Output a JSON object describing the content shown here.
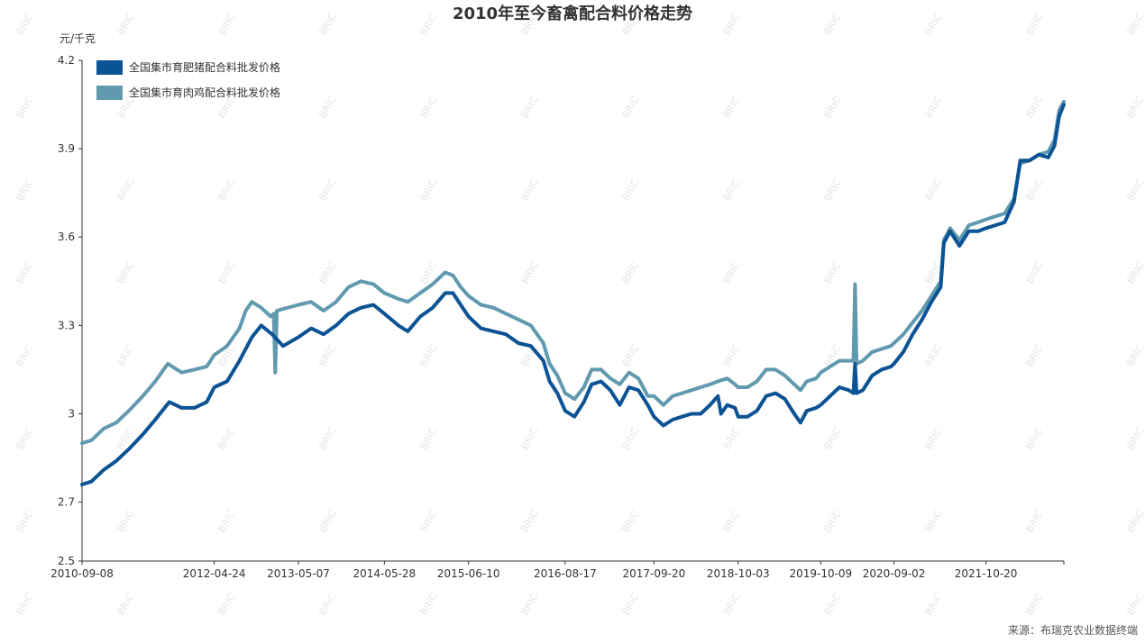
{
  "source_label": "来源：布瑞克农业数据终端",
  "watermark_text": "BRIC",
  "chart_data": {
    "type": "line",
    "title": "2010年至今畜禽配合料价格走势",
    "ylabel": "元/千克",
    "xlabel": "",
    "ylim": [
      2.5,
      4.2
    ],
    "y_ticks": [
      2.5,
      2.7,
      3,
      3.3,
      3.6,
      3.9,
      4.2
    ],
    "x_ticks": [
      "2010-09-08",
      "2012-04-24",
      "2013-05-07",
      "2014-05-28",
      "2015-06-10",
      "2016-08-17",
      "2017-09-20",
      "2018-10-03",
      "2019-10-09",
      "2020-09-02",
      "2021-10-20"
    ],
    "x_range": [
      "2010-09-08",
      "2022-10-05"
    ],
    "grid": false,
    "legend_position": "top-left",
    "series": [
      {
        "name": "全国集市育肥猪配合料批发价格",
        "color": "#0b5394",
        "points": [
          [
            "2010-09-08",
            2.76
          ],
          [
            "2010-10-20",
            2.77
          ],
          [
            "2010-12-15",
            2.81
          ],
          [
            "2011-02-09",
            2.84
          ],
          [
            "2011-04-06",
            2.88
          ],
          [
            "2011-06-08",
            2.93
          ],
          [
            "2011-08-03",
            2.98
          ],
          [
            "2011-10-05",
            3.04
          ],
          [
            "2011-11-30",
            3.02
          ],
          [
            "2012-01-25",
            3.02
          ],
          [
            "2012-03-21",
            3.04
          ],
          [
            "2012-04-24",
            3.09
          ],
          [
            "2012-06-20",
            3.11
          ],
          [
            "2012-08-15",
            3.18
          ],
          [
            "2012-10-10",
            3.26
          ],
          [
            "2012-11-21",
            3.3
          ],
          [
            "2013-01-09",
            3.27
          ],
          [
            "2013-02-27",
            3.23
          ],
          [
            "2013-05-07",
            3.26
          ],
          [
            "2013-07-03",
            3.29
          ],
          [
            "2013-08-28",
            3.27
          ],
          [
            "2013-10-23",
            3.3
          ],
          [
            "2013-12-18",
            3.34
          ],
          [
            "2014-02-12",
            3.36
          ],
          [
            "2014-04-09",
            3.37
          ],
          [
            "2014-05-28",
            3.34
          ],
          [
            "2014-07-30",
            3.3
          ],
          [
            "2014-09-10",
            3.28
          ],
          [
            "2014-11-05",
            3.33
          ],
          [
            "2014-12-31",
            3.36
          ],
          [
            "2015-02-25",
            3.41
          ],
          [
            "2015-04-01",
            3.41
          ],
          [
            "2015-05-06",
            3.37
          ],
          [
            "2015-06-10",
            3.33
          ],
          [
            "2015-08-05",
            3.29
          ],
          [
            "2015-09-30",
            3.28
          ],
          [
            "2015-11-25",
            3.27
          ],
          [
            "2016-01-20",
            3.24
          ],
          [
            "2016-03-16",
            3.23
          ],
          [
            "2016-05-11",
            3.18
          ],
          [
            "2016-06-08",
            3.11
          ],
          [
            "2016-07-13",
            3.07
          ],
          [
            "2016-08-17",
            3.01
          ],
          [
            "2016-09-28",
            2.99
          ],
          [
            "2016-11-09",
            3.04
          ],
          [
            "2016-12-14",
            3.1
          ],
          [
            "2017-01-25",
            3.11
          ],
          [
            "2017-03-08",
            3.08
          ],
          [
            "2017-04-19",
            3.03
          ],
          [
            "2017-05-31",
            3.09
          ],
          [
            "2017-07-12",
            3.08
          ],
          [
            "2017-08-23",
            3.03
          ],
          [
            "2017-09-20",
            2.99
          ],
          [
            "2017-11-01",
            2.96
          ],
          [
            "2017-12-13",
            2.98
          ],
          [
            "2018-01-24",
            2.99
          ],
          [
            "2018-03-07",
            3.0
          ],
          [
            "2018-04-18",
            3.0
          ],
          [
            "2018-05-30",
            3.03
          ],
          [
            "2018-07-04",
            3.06
          ],
          [
            "2018-07-18",
            3.0
          ],
          [
            "2018-08-15",
            3.03
          ],
          [
            "2018-09-19",
            3.02
          ],
          [
            "2018-10-03",
            2.99
          ],
          [
            "2018-11-14",
            2.99
          ],
          [
            "2018-12-26",
            3.01
          ],
          [
            "2019-02-06",
            3.06
          ],
          [
            "2019-03-20",
            3.07
          ],
          [
            "2019-05-01",
            3.05
          ],
          [
            "2019-06-12",
            3.0
          ],
          [
            "2019-07-10",
            2.97
          ],
          [
            "2019-08-07",
            3.01
          ],
          [
            "2019-09-18",
            3.02
          ],
          [
            "2019-10-09",
            3.03
          ],
          [
            "2019-11-20",
            3.06
          ],
          [
            "2020-01-01",
            3.09
          ],
          [
            "2020-02-12",
            3.08
          ],
          [
            "2020-03-04",
            3.07
          ],
          [
            "2020-03-11",
            3.17
          ],
          [
            "2020-03-18",
            3.07
          ],
          [
            "2020-04-15",
            3.08
          ],
          [
            "2020-05-27",
            3.13
          ],
          [
            "2020-07-08",
            3.15
          ],
          [
            "2020-08-19",
            3.16
          ],
          [
            "2020-09-02",
            3.17
          ],
          [
            "2020-10-14",
            3.21
          ],
          [
            "2020-11-25",
            3.27
          ],
          [
            "2021-01-06",
            3.32
          ],
          [
            "2021-02-17",
            3.38
          ],
          [
            "2021-03-31",
            3.43
          ],
          [
            "2021-04-14",
            3.58
          ],
          [
            "2021-05-12",
            3.62
          ],
          [
            "2021-06-23",
            3.57
          ],
          [
            "2021-08-04",
            3.62
          ],
          [
            "2021-09-15",
            3.62
          ],
          [
            "2021-10-20",
            3.63
          ],
          [
            "2021-12-01",
            3.64
          ],
          [
            "2022-01-12",
            3.65
          ],
          [
            "2022-02-23",
            3.72
          ],
          [
            "2022-03-23",
            3.86
          ],
          [
            "2022-05-04",
            3.86
          ],
          [
            "2022-06-15",
            3.88
          ],
          [
            "2022-07-27",
            3.87
          ],
          [
            "2022-08-24",
            3.91
          ],
          [
            "2022-09-14",
            4.01
          ],
          [
            "2022-10-05",
            4.05
          ]
        ]
      },
      {
        "name": "全国集市育肉鸡配合料批发价格",
        "color": "#6199ae",
        "points": [
          [
            "2010-09-08",
            2.9
          ],
          [
            "2010-10-20",
            2.91
          ],
          [
            "2010-12-15",
            2.95
          ],
          [
            "2011-02-09",
            2.97
          ],
          [
            "2011-04-06",
            3.01
          ],
          [
            "2011-06-08",
            3.06
          ],
          [
            "2011-08-03",
            3.11
          ],
          [
            "2011-09-28",
            3.17
          ],
          [
            "2011-11-30",
            3.14
          ],
          [
            "2012-01-25",
            3.15
          ],
          [
            "2012-03-21",
            3.16
          ],
          [
            "2012-04-24",
            3.2
          ],
          [
            "2012-06-20",
            3.23
          ],
          [
            "2012-08-15",
            3.29
          ],
          [
            "2012-09-12",
            3.35
          ],
          [
            "2012-10-10",
            3.38
          ],
          [
            "2012-11-21",
            3.36
          ],
          [
            "2013-01-02",
            3.33
          ],
          [
            "2013-01-16",
            3.34
          ],
          [
            "2013-01-23",
            3.14
          ],
          [
            "2013-01-30",
            3.35
          ],
          [
            "2013-05-07",
            3.37
          ],
          [
            "2013-07-03",
            3.38
          ],
          [
            "2013-08-28",
            3.35
          ],
          [
            "2013-10-23",
            3.38
          ],
          [
            "2013-12-18",
            3.43
          ],
          [
            "2014-02-12",
            3.45
          ],
          [
            "2014-04-09",
            3.44
          ],
          [
            "2014-05-28",
            3.41
          ],
          [
            "2014-07-30",
            3.39
          ],
          [
            "2014-09-10",
            3.38
          ],
          [
            "2014-11-05",
            3.41
          ],
          [
            "2014-12-31",
            3.44
          ],
          [
            "2015-02-25",
            3.48
          ],
          [
            "2015-04-01",
            3.47
          ],
          [
            "2015-05-06",
            3.43
          ],
          [
            "2015-06-10",
            3.4
          ],
          [
            "2015-08-05",
            3.37
          ],
          [
            "2015-09-30",
            3.36
          ],
          [
            "2015-11-25",
            3.34
          ],
          [
            "2016-01-20",
            3.32
          ],
          [
            "2016-03-16",
            3.3
          ],
          [
            "2016-05-11",
            3.24
          ],
          [
            "2016-06-08",
            3.17
          ],
          [
            "2016-07-13",
            3.13
          ],
          [
            "2016-08-17",
            3.07
          ],
          [
            "2016-09-28",
            3.05
          ],
          [
            "2016-11-09",
            3.09
          ],
          [
            "2016-12-14",
            3.15
          ],
          [
            "2017-01-25",
            3.15
          ],
          [
            "2017-03-08",
            3.12
          ],
          [
            "2017-04-19",
            3.1
          ],
          [
            "2017-05-31",
            3.14
          ],
          [
            "2017-07-12",
            3.12
          ],
          [
            "2017-08-23",
            3.06
          ],
          [
            "2017-09-20",
            3.06
          ],
          [
            "2017-11-01",
            3.03
          ],
          [
            "2017-12-13",
            3.06
          ],
          [
            "2018-01-24",
            3.07
          ],
          [
            "2018-03-07",
            3.08
          ],
          [
            "2018-04-18",
            3.09
          ],
          [
            "2018-05-30",
            3.1
          ],
          [
            "2018-07-04",
            3.11
          ],
          [
            "2018-08-15",
            3.12
          ],
          [
            "2018-09-19",
            3.1
          ],
          [
            "2018-10-03",
            3.09
          ],
          [
            "2018-11-14",
            3.09
          ],
          [
            "2018-12-26",
            3.11
          ],
          [
            "2019-02-06",
            3.15
          ],
          [
            "2019-03-20",
            3.15
          ],
          [
            "2019-05-01",
            3.13
          ],
          [
            "2019-06-12",
            3.1
          ],
          [
            "2019-07-10",
            3.08
          ],
          [
            "2019-08-07",
            3.11
          ],
          [
            "2019-09-18",
            3.12
          ],
          [
            "2019-10-09",
            3.14
          ],
          [
            "2019-11-20",
            3.16
          ],
          [
            "2020-01-01",
            3.18
          ],
          [
            "2020-02-12",
            3.18
          ],
          [
            "2020-03-04",
            3.18
          ],
          [
            "2020-03-11",
            3.44
          ],
          [
            "2020-03-18",
            3.17
          ],
          [
            "2020-04-15",
            3.18
          ],
          [
            "2020-05-27",
            3.21
          ],
          [
            "2020-07-08",
            3.22
          ],
          [
            "2020-08-19",
            3.23
          ],
          [
            "2020-09-02",
            3.24
          ],
          [
            "2020-10-14",
            3.27
          ],
          [
            "2020-11-25",
            3.31
          ],
          [
            "2021-01-06",
            3.35
          ],
          [
            "2021-02-17",
            3.4
          ],
          [
            "2021-03-31",
            3.45
          ],
          [
            "2021-04-14",
            3.59
          ],
          [
            "2021-05-12",
            3.63
          ],
          [
            "2021-06-23",
            3.59
          ],
          [
            "2021-08-04",
            3.64
          ],
          [
            "2021-09-15",
            3.65
          ],
          [
            "2021-10-20",
            3.66
          ],
          [
            "2021-12-01",
            3.67
          ],
          [
            "2022-01-12",
            3.68
          ],
          [
            "2022-02-23",
            3.73
          ],
          [
            "2022-03-23",
            3.85
          ],
          [
            "2022-05-04",
            3.86
          ],
          [
            "2022-06-15",
            3.88
          ],
          [
            "2022-07-27",
            3.89
          ],
          [
            "2022-08-24",
            3.93
          ],
          [
            "2022-09-14",
            4.03
          ],
          [
            "2022-10-05",
            4.06
          ]
        ]
      }
    ]
  }
}
